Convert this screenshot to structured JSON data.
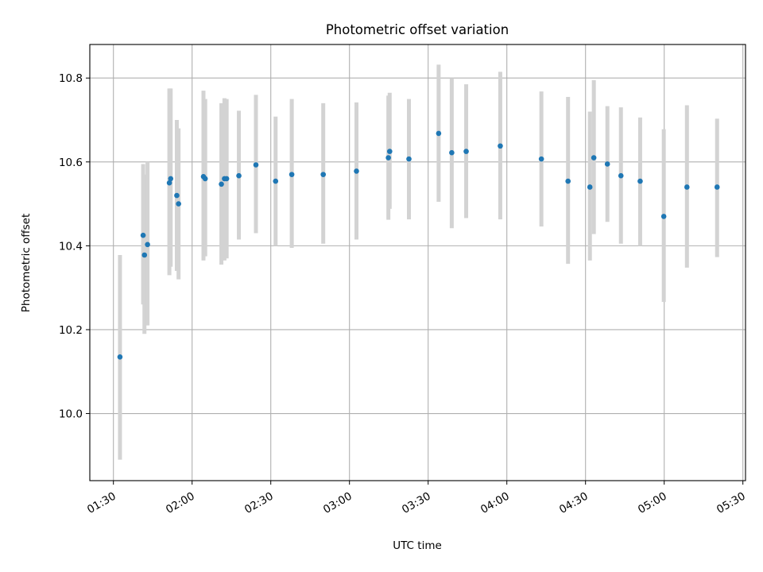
{
  "chart_data": {
    "type": "scatter",
    "title": "Photometric offset variation",
    "xlabel": "UTC time",
    "ylabel": "Photometric offset",
    "x_unit": "UTC time (HH:MM)",
    "xlim": [
      "01:21",
      "05:31"
    ],
    "ylim": [
      9.84,
      10.88
    ],
    "x_ticks": [
      "01:30",
      "02:00",
      "02:30",
      "03:00",
      "03:30",
      "04:00",
      "04:30",
      "05:00",
      "05:30"
    ],
    "y_ticks": [
      "10.0",
      "10.2",
      "10.4",
      "10.6",
      "10.8"
    ],
    "grid": true,
    "colors": {
      "point": "#1f77b4",
      "errorbar": "#d3d3d3",
      "grid": "#b0b0b0"
    },
    "points": [
      {
        "t": "01:32:30",
        "y": 10.135,
        "lo": 9.89,
        "hi": 10.378
      },
      {
        "t": "01:41:20",
        "y": 10.425,
        "lo": 10.26,
        "hi": 10.595
      },
      {
        "t": "01:41:50",
        "y": 10.378,
        "lo": 10.19,
        "hi": 10.57
      },
      {
        "t": "01:43:00",
        "y": 10.403,
        "lo": 10.21,
        "hi": 10.6
      },
      {
        "t": "01:51:20",
        "y": 10.55,
        "lo": 10.33,
        "hi": 10.775
      },
      {
        "t": "01:51:50",
        "y": 10.56,
        "lo": 10.35,
        "hi": 10.775
      },
      {
        "t": "01:54:10",
        "y": 10.52,
        "lo": 10.34,
        "hi": 10.7
      },
      {
        "t": "01:54:50",
        "y": 10.5,
        "lo": 10.32,
        "hi": 10.68
      },
      {
        "t": "02:04:20",
        "y": 10.565,
        "lo": 10.365,
        "hi": 10.77
      },
      {
        "t": "02:05:00",
        "y": 10.56,
        "lo": 10.375,
        "hi": 10.75
      },
      {
        "t": "02:11:10",
        "y": 10.547,
        "lo": 10.355,
        "hi": 10.74
      },
      {
        "t": "02:12:20",
        "y": 10.56,
        "lo": 10.365,
        "hi": 10.752
      },
      {
        "t": "02:13:10",
        "y": 10.56,
        "lo": 10.37,
        "hi": 10.75
      },
      {
        "t": "02:17:50",
        "y": 10.567,
        "lo": 10.415,
        "hi": 10.722
      },
      {
        "t": "02:24:20",
        "y": 10.593,
        "lo": 10.43,
        "hi": 10.76
      },
      {
        "t": "02:31:50",
        "y": 10.554,
        "lo": 10.4,
        "hi": 10.708
      },
      {
        "t": "02:38:00",
        "y": 10.57,
        "lo": 10.395,
        "hi": 10.75
      },
      {
        "t": "02:50:00",
        "y": 10.57,
        "lo": 10.405,
        "hi": 10.74
      },
      {
        "t": "03:02:40",
        "y": 10.578,
        "lo": 10.415,
        "hi": 10.742
      },
      {
        "t": "03:14:50",
        "y": 10.61,
        "lo": 10.462,
        "hi": 10.758
      },
      {
        "t": "03:15:20",
        "y": 10.625,
        "lo": 10.488,
        "hi": 10.765
      },
      {
        "t": "03:22:40",
        "y": 10.607,
        "lo": 10.463,
        "hi": 10.75
      },
      {
        "t": "03:34:00",
        "y": 10.668,
        "lo": 10.505,
        "hi": 10.832
      },
      {
        "t": "03:39:00",
        "y": 10.622,
        "lo": 10.442,
        "hi": 10.8
      },
      {
        "t": "03:44:30",
        "y": 10.625,
        "lo": 10.466,
        "hi": 10.785
      },
      {
        "t": "03:57:30",
        "y": 10.638,
        "lo": 10.463,
        "hi": 10.815
      },
      {
        "t": "04:13:10",
        "y": 10.607,
        "lo": 10.446,
        "hi": 10.768
      },
      {
        "t": "04:23:20",
        "y": 10.554,
        "lo": 10.357,
        "hi": 10.755
      },
      {
        "t": "04:31:40",
        "y": 10.54,
        "lo": 10.365,
        "hi": 10.72
      },
      {
        "t": "04:33:10",
        "y": 10.61,
        "lo": 10.428,
        "hi": 10.795
      },
      {
        "t": "04:38:20",
        "y": 10.595,
        "lo": 10.457,
        "hi": 10.733
      },
      {
        "t": "04:43:30",
        "y": 10.567,
        "lo": 10.405,
        "hi": 10.73
      },
      {
        "t": "04:50:50",
        "y": 10.554,
        "lo": 10.4,
        "hi": 10.706
      },
      {
        "t": "04:59:50",
        "y": 10.47,
        "lo": 10.266,
        "hi": 10.678
      },
      {
        "t": "05:08:40",
        "y": 10.54,
        "lo": 10.348,
        "hi": 10.735
      },
      {
        "t": "05:20:10",
        "y": 10.54,
        "lo": 10.373,
        "hi": 10.703
      }
    ]
  }
}
